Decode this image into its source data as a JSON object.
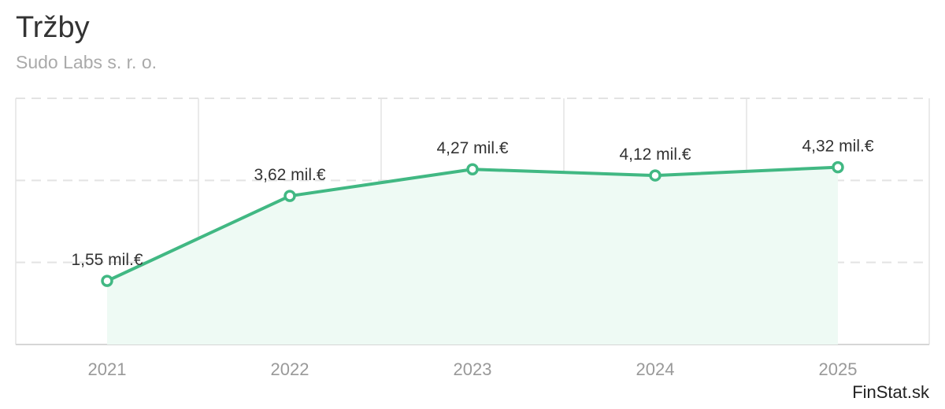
{
  "header": {
    "title": "Tržby",
    "subtitle": "Sudo Labs s. r. o."
  },
  "footer": {
    "brand": "FinStat.sk"
  },
  "colors": {
    "line": "#41b883",
    "area": "#eefaf4",
    "grid": "#e3e3e3",
    "marker_fill": "#ffffff"
  },
  "chart_data": {
    "type": "area",
    "title": "Tržby",
    "subtitle": "Sudo Labs s. r. o.",
    "categories": [
      "2021",
      "2022",
      "2023",
      "2024",
      "2025"
    ],
    "values": [
      1.55,
      3.62,
      4.27,
      4.12,
      4.32
    ],
    "value_labels": [
      "1,55 mil.€",
      "3,62 mil.€",
      "4,27 mil.€",
      "4,12 mil.€",
      "4,32 mil.€"
    ],
    "ylim": [
      0,
      6
    ],
    "grid": true,
    "legend": "none"
  }
}
